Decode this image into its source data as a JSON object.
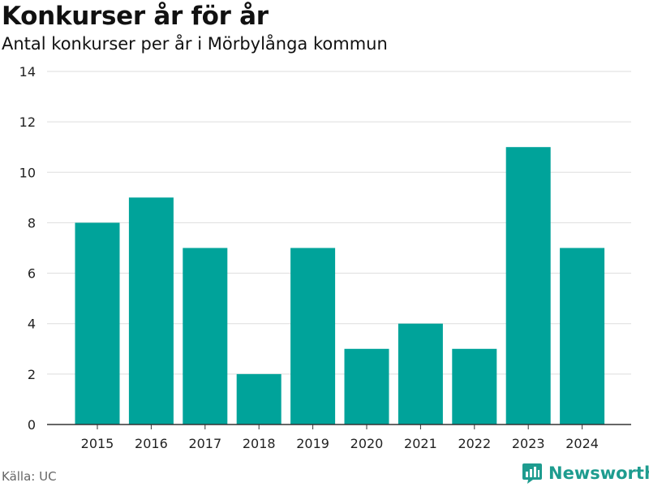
{
  "header": {
    "title": "Konkurser år för år",
    "subtitle": "Antal konkurser per år i Mörbylånga kommun"
  },
  "footer": {
    "source": "Källa: UC",
    "brand": "Newsworthy"
  },
  "colors": {
    "bar": "#00a39a",
    "grid": "#dddddd",
    "axis": "#333333",
    "brand": "#1e9c8f"
  },
  "chart_data": {
    "type": "bar",
    "categories": [
      "2015",
      "2016",
      "2017",
      "2018",
      "2019",
      "2020",
      "2021",
      "2022",
      "2023",
      "2024"
    ],
    "values": [
      8,
      9,
      7,
      2,
      7,
      3,
      4,
      3,
      11,
      7
    ],
    "title": "Konkurser år för år",
    "subtitle": "Antal konkurser per år i Mörbylånga kommun",
    "xlabel": "",
    "ylabel": "",
    "ylim": [
      0,
      14
    ],
    "yticks": [
      0,
      2,
      4,
      6,
      8,
      10,
      12,
      14
    ],
    "grid": true,
    "legend": "none"
  }
}
